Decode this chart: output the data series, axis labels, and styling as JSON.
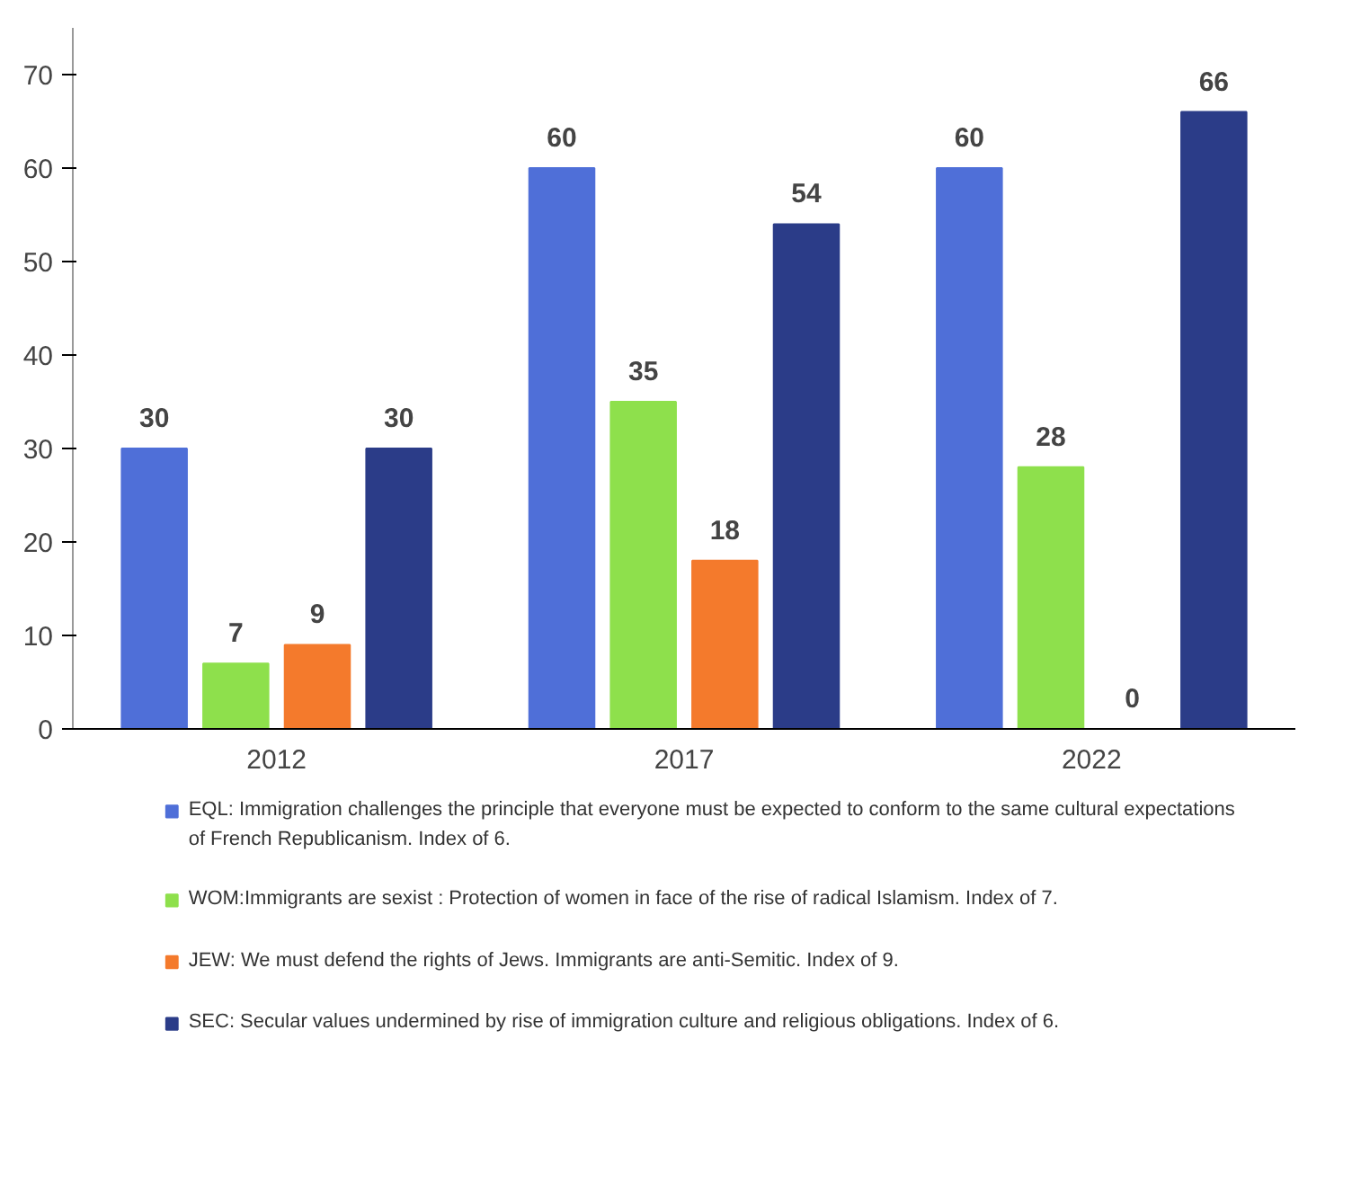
{
  "chart_data": {
    "type": "bar",
    "categories": [
      "2012",
      "2017",
      "2022"
    ],
    "series": [
      {
        "name": "EQL: Immigration challenges the principle that everyone must be expected to conform to the same cultural expectations of French Republicanism. Index of 6.",
        "color": "#4f6fd8",
        "values": [
          30,
          60,
          60
        ]
      },
      {
        "name": "WOM:Immigrants are sexist : Protection of women in face of the rise of radical Islamism. Index of 7.",
        "color": "#8ee04c",
        "values": [
          7,
          35,
          28
        ]
      },
      {
        "name": "JEW: We must defend the rights of Jews. Immigrants are anti-Semitic. Index of 9.",
        "color": "#f47a2c",
        "values": [
          9,
          18,
          0
        ]
      },
      {
        "name": "SEC: Secular values undermined by rise of immigration culture and religious obligations. Index of 6.",
        "color": "#2b3c88",
        "values": [
          30,
          54,
          66
        ]
      }
    ],
    "ylim": [
      0,
      75
    ],
    "yticks": [
      0,
      10,
      20,
      30,
      40,
      50,
      60,
      70
    ],
    "data_labels": true,
    "grid": false,
    "legend": "bottom"
  }
}
